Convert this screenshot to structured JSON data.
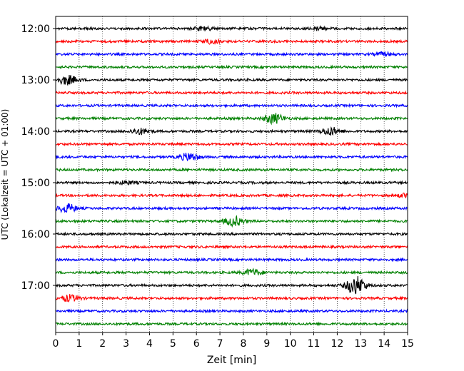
{
  "chart_data": {
    "type": "line",
    "title": "",
    "xlabel": "Zeit  [min]",
    "ylabel": "UTC (Lokalzeit = UTC + 01:00)",
    "xlim": [
      0,
      15
    ],
    "x_ticks": [
      0,
      1,
      2,
      3,
      4,
      5,
      6,
      7,
      8,
      9,
      10,
      11,
      12,
      13,
      14,
      15
    ],
    "grid": "vertical-dotted",
    "start_hour": 12,
    "minutes_per_trace": 15,
    "hour_labels": [
      "12:00",
      "13:00",
      "14:00",
      "15:00",
      "16:00",
      "17:00"
    ],
    "series_colors": [
      "#000000",
      "#ff0000",
      "#0000ff",
      "#008000"
    ],
    "traces": [
      {
        "start": "12:00",
        "color": "#000000",
        "events": [
          {
            "t": 6.3,
            "amp": 0.35
          },
          {
            "t": 11.2,
            "amp": 0.3
          }
        ]
      },
      {
        "start": "12:15",
        "color": "#ff0000",
        "events": [
          {
            "t": 6.6,
            "amp": 0.35
          }
        ]
      },
      {
        "start": "12:30",
        "color": "#0000ff",
        "events": [
          {
            "t": 14.0,
            "amp": 0.3
          }
        ]
      },
      {
        "start": "12:45",
        "color": "#008000",
        "events": []
      },
      {
        "start": "13:00",
        "color": "#000000",
        "events": [
          {
            "t": 0.5,
            "amp": 0.9
          }
        ]
      },
      {
        "start": "13:15",
        "color": "#ff0000",
        "events": []
      },
      {
        "start": "13:30",
        "color": "#0000ff",
        "events": []
      },
      {
        "start": "13:45",
        "color": "#008000",
        "events": [
          {
            "t": 9.3,
            "amp": 1.0
          }
        ]
      },
      {
        "start": "14:00",
        "color": "#000000",
        "events": [
          {
            "t": 3.6,
            "amp": 0.55
          },
          {
            "t": 11.7,
            "amp": 0.75
          }
        ]
      },
      {
        "start": "14:15",
        "color": "#ff0000",
        "events": []
      },
      {
        "start": "14:30",
        "color": "#0000ff",
        "events": [
          {
            "t": 5.7,
            "amp": 0.75
          }
        ]
      },
      {
        "start": "14:45",
        "color": "#008000",
        "events": []
      },
      {
        "start": "15:00",
        "color": "#000000",
        "events": [
          {
            "t": 3.0,
            "amp": 0.3
          }
        ]
      },
      {
        "start": "15:15",
        "color": "#ff0000",
        "events": [
          {
            "t": 14.9,
            "amp": 0.3
          }
        ]
      },
      {
        "start": "15:30",
        "color": "#0000ff",
        "events": [
          {
            "t": 0.5,
            "amp": 0.8
          }
        ]
      },
      {
        "start": "15:45",
        "color": "#008000",
        "events": [
          {
            "t": 7.6,
            "amp": 0.9
          }
        ]
      },
      {
        "start": "16:00",
        "color": "#000000",
        "events": []
      },
      {
        "start": "16:15",
        "color": "#ff0000",
        "events": []
      },
      {
        "start": "16:30",
        "color": "#0000ff",
        "events": []
      },
      {
        "start": "16:45",
        "color": "#008000",
        "events": [
          {
            "t": 8.4,
            "amp": 0.6
          }
        ]
      },
      {
        "start": "17:00",
        "color": "#000000",
        "events": [
          {
            "t": 12.8,
            "amp": 1.8
          }
        ]
      },
      {
        "start": "17:15",
        "color": "#ff0000",
        "events": [
          {
            "t": 0.6,
            "amp": 0.6
          }
        ]
      },
      {
        "start": "17:30",
        "color": "#0000ff",
        "events": []
      },
      {
        "start": "17:45",
        "color": "#008000",
        "events": []
      }
    ]
  }
}
